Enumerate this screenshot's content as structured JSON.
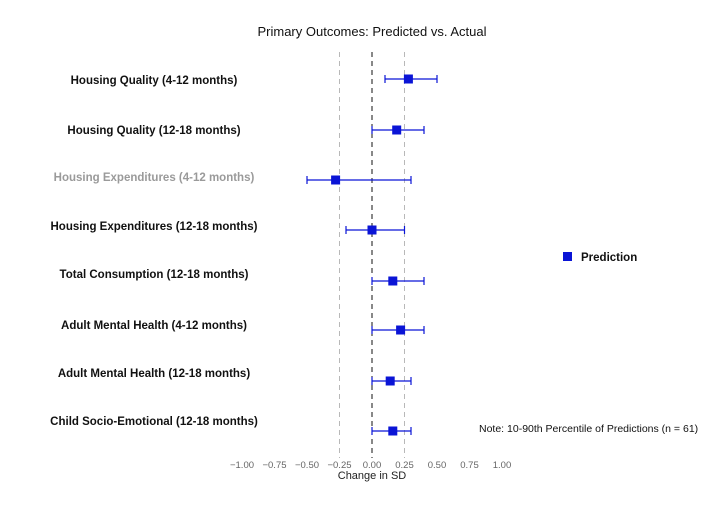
{
  "chart_data": {
    "type": "scatter",
    "title": "Primary Outcomes: Predicted vs. Actual",
    "xlabel": "Change in SD",
    "ylabel": "",
    "xlim": [
      -1.0,
      1.0
    ],
    "x_ticks": [
      "−1.00",
      "−0.75",
      "−0.50",
      "−0.25",
      "0.00",
      "0.25",
      "0.50",
      "0.75",
      "1.00"
    ],
    "x_tick_values": [
      -1.0,
      -0.75,
      -0.5,
      -0.25,
      0.0,
      0.25,
      0.5,
      0.75,
      1.0
    ],
    "reference_lines": [
      {
        "x": -0.25,
        "style": "dashed",
        "color": "#b8b8b8"
      },
      {
        "x": 0.0,
        "style": "dashed",
        "color": "#111111"
      },
      {
        "x": 0.25,
        "style": "dashed",
        "color": "#b8b8b8"
      }
    ],
    "categories": [
      "Housing Quality (4-12 months)",
      "Housing Quality (12-18 months)",
      "Housing Expenditures (4-12 months)",
      "Housing Expenditures (12-18 months)",
      "Total Consumption (12-18 months)",
      "Adult Mental Health (4-12 months)",
      "Adult Mental Health (12-18 months)",
      "Child Socio-Emotional (12-18 months)"
    ],
    "category_muted": [
      false,
      false,
      true,
      false,
      false,
      false,
      false,
      false
    ],
    "series": [
      {
        "name": "Prediction",
        "color": "#0a14d6",
        "points": [
          {
            "x": 0.28,
            "lo": 0.1,
            "hi": 0.5
          },
          {
            "x": 0.19,
            "lo": 0.0,
            "hi": 0.4
          },
          {
            "x": -0.28,
            "lo": -0.5,
            "hi": 0.3
          },
          {
            "x": 0.0,
            "lo": -0.2,
            "hi": 0.25
          },
          {
            "x": 0.16,
            "lo": 0.0,
            "hi": 0.4
          },
          {
            "x": 0.22,
            "lo": 0.0,
            "hi": 0.4
          },
          {
            "x": 0.14,
            "lo": 0.0,
            "hi": 0.3
          },
          {
            "x": 0.16,
            "lo": 0.0,
            "hi": 0.3
          }
        ]
      }
    ],
    "legend": {
      "label": "Prediction",
      "color": "#0a14d6",
      "position": "right"
    },
    "note": "Note: 10-90th Percentile of Predictions (n = 61)"
  }
}
